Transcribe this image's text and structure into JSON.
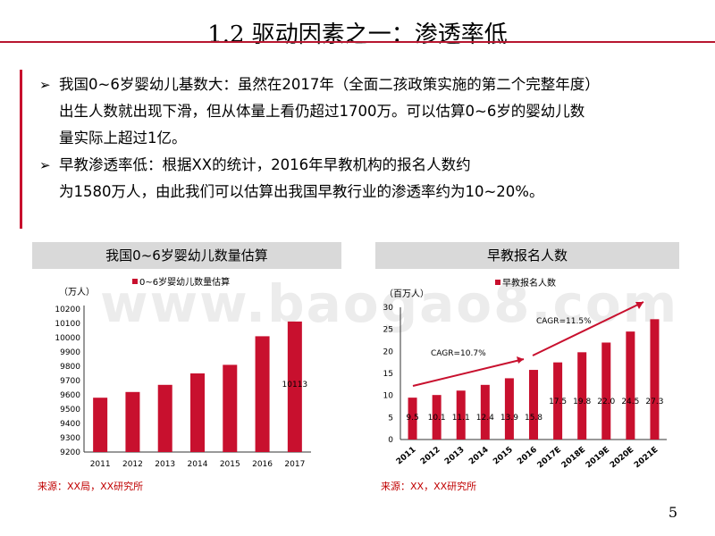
{
  "page": {
    "title": "1.2 驱动因素之一：渗透率低",
    "page_number": "5",
    "watermark": "www.baogao8.com"
  },
  "bullets": [
    {
      "line1": "我国0~6岁婴幼儿基数大：虽然在2017年（全面二孩政策实施的第二个完整年度）",
      "line2": "出生人数就出现下滑，但从体量上看仍超过1700万。可以估算0~6岁的婴幼儿数",
      "line3": "量实际上超过1亿。"
    },
    {
      "line1": "早教渗透率低：根据XX的统计，2016年早教机构的报名人数约",
      "line2": "为1580万人，由此我们可以估算出我国早教行业的渗透率约为10~20%。",
      "line3": ""
    }
  ],
  "colors": {
    "bar": "#c8102e",
    "accent": "#b7162f",
    "source": "#c00000"
  },
  "chart_data": [
    {
      "type": "bar",
      "header": "我国0~6岁婴幼儿数量估算",
      "unit": "（万人）",
      "legend": "0~6岁婴幼儿数量估算",
      "categories": [
        "2011",
        "2012",
        "2013",
        "2014",
        "2015",
        "2016",
        "2017"
      ],
      "values": [
        9580,
        9620,
        9670,
        9750,
        9810,
        10010,
        10113
      ],
      "data_labels": [
        "",
        "",
        "",
        "",
        "",
        "",
        "10113"
      ],
      "yticks": [
        "9200",
        "9300",
        "9400",
        "9500",
        "9600",
        "9700",
        "9800",
        "9900",
        "10000",
        "10100",
        "10200"
      ],
      "ylim": [
        9200,
        10200
      ],
      "source": "来源：XX局，XX研究所"
    },
    {
      "type": "bar",
      "header": "早教报名人数",
      "unit": "（百万人）",
      "legend": "早教报名人数",
      "categories": [
        "2011",
        "2012",
        "2013",
        "2014",
        "2015",
        "2016",
        "2017E",
        "2018E",
        "2019E",
        "2020E",
        "2021E"
      ],
      "values": [
        9.5,
        10.1,
        11.1,
        12.4,
        13.9,
        15.8,
        17.5,
        19.8,
        22.0,
        24.5,
        27.3
      ],
      "data_labels": [
        "9.5",
        "10.1",
        "11.1",
        "12.4",
        "13.9",
        "15.8",
        "17.5",
        "19.8",
        "22.0",
        "24.5",
        "27.3"
      ],
      "yticks": [
        "0",
        "5",
        "10",
        "15",
        "20",
        "25",
        "30"
      ],
      "ylim": [
        0,
        30
      ],
      "annotations": [
        "CAGR=10.7%",
        "CAGR=11.5%"
      ],
      "source": "来源：XX，XX研究所"
    }
  ]
}
